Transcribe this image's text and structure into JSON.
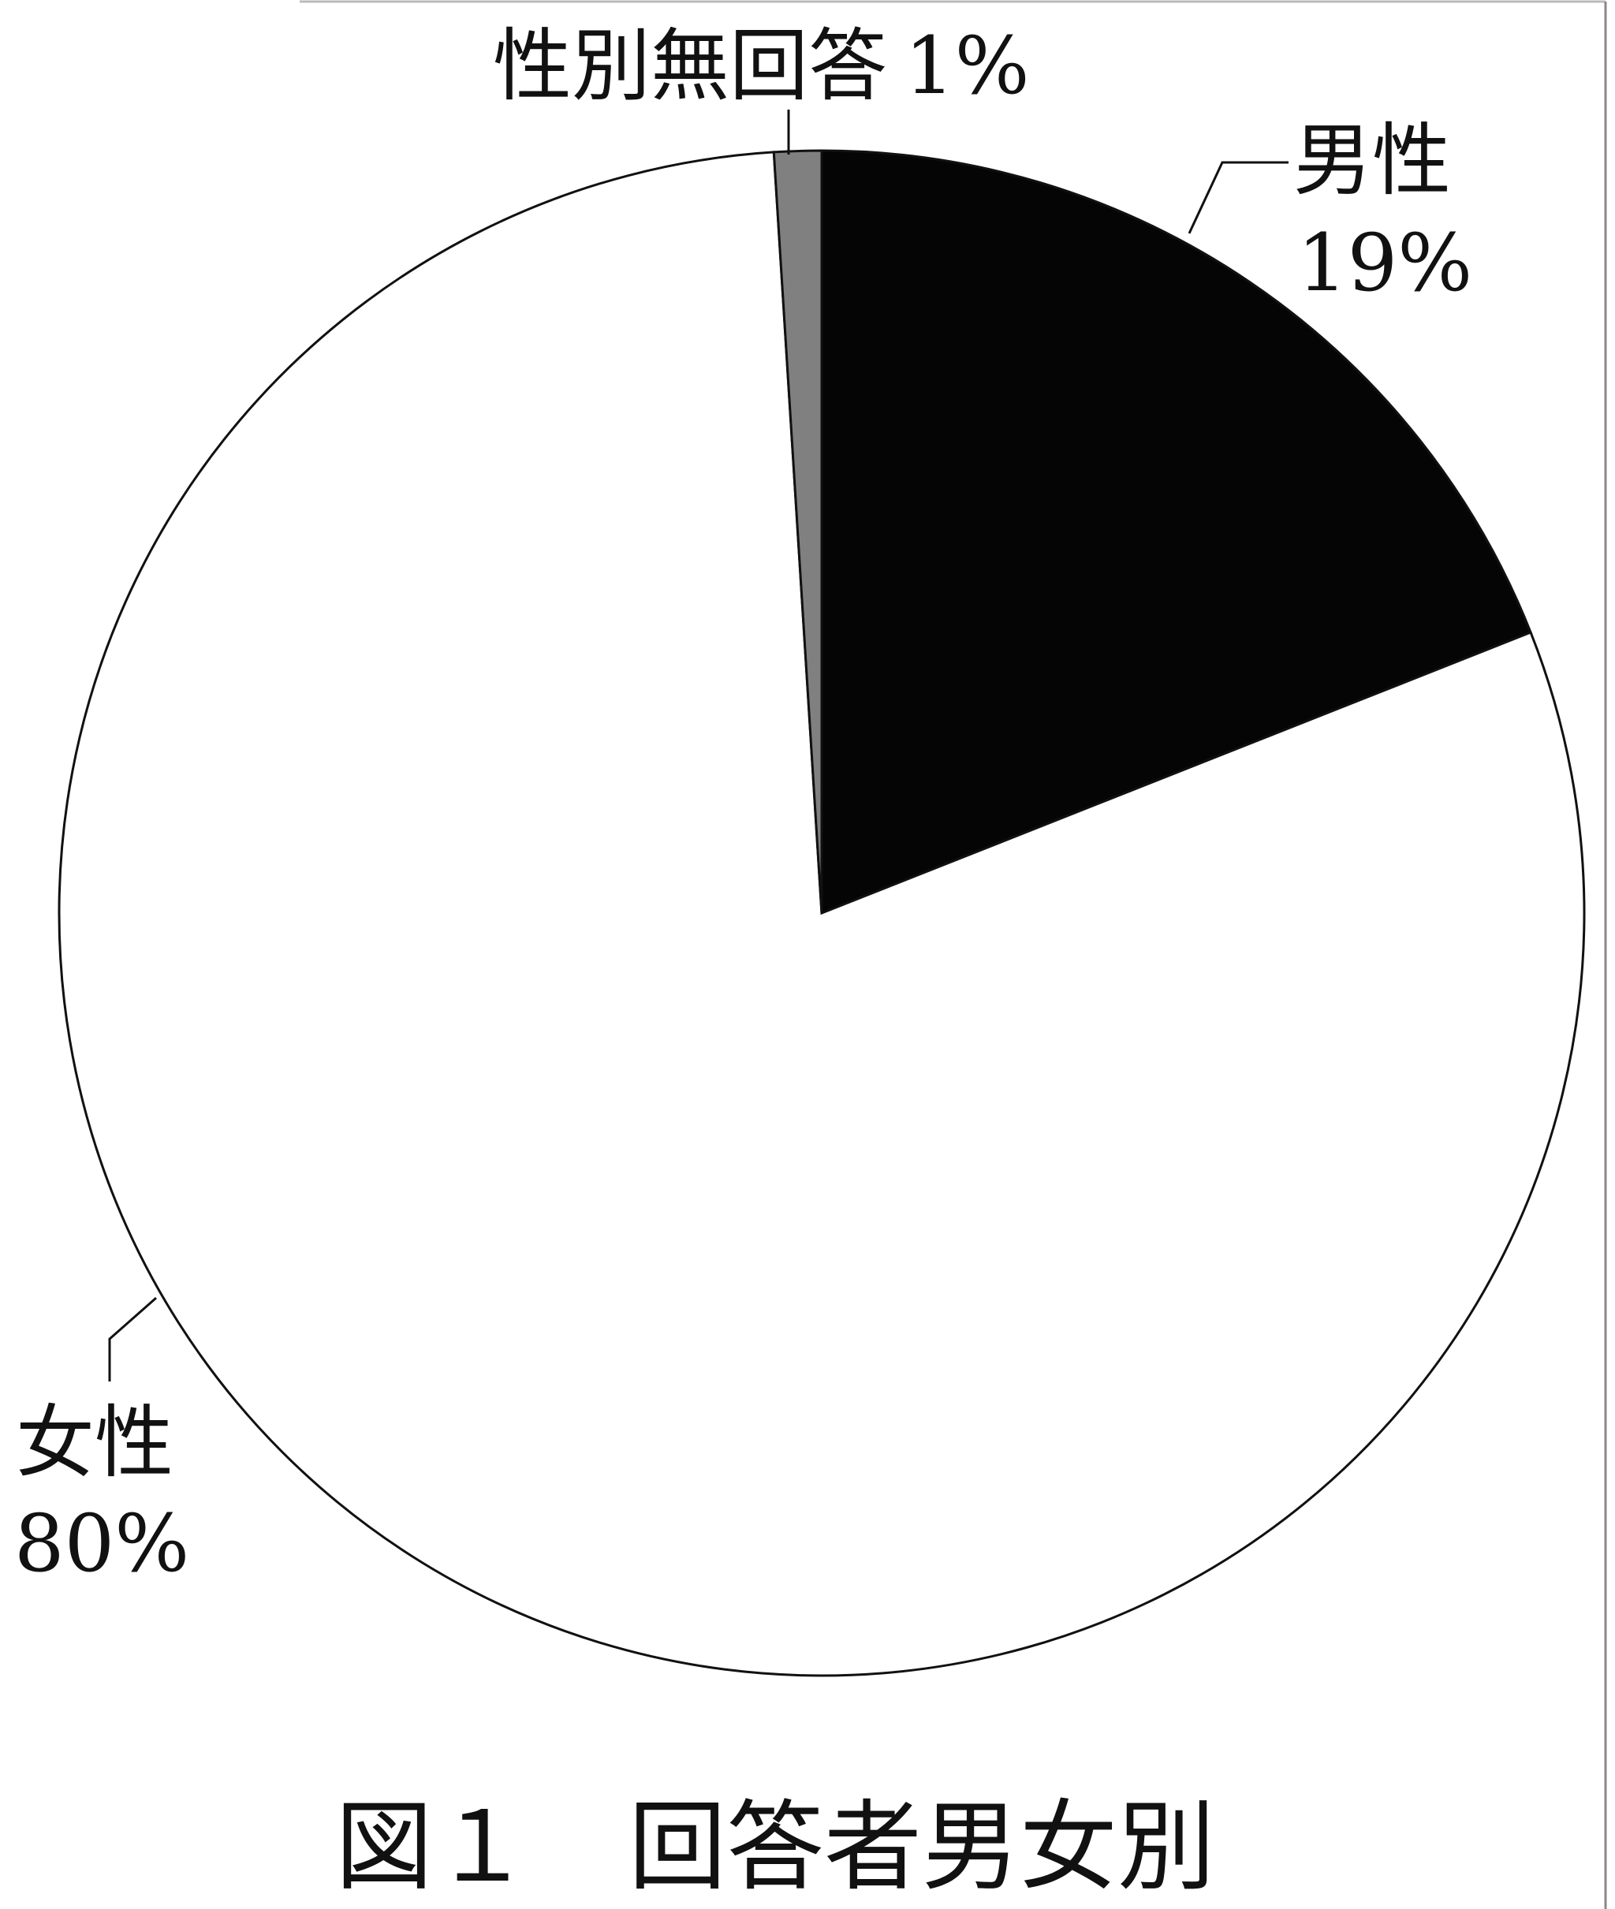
{
  "chart_data": {
    "type": "pie",
    "title": "図１　回答者男女別",
    "start_angle": "12 o'clock",
    "direction": "clockwise",
    "slices": [
      {
        "label": "男性",
        "value": 19,
        "value_label": "19%",
        "color": "#050505"
      },
      {
        "label": "女性",
        "value": 80,
        "value_label": "80%",
        "color": "#ffffff"
      },
      {
        "label": "性別無回答",
        "value": 1,
        "value_label": "1%",
        "color": "#808080"
      }
    ]
  }
}
